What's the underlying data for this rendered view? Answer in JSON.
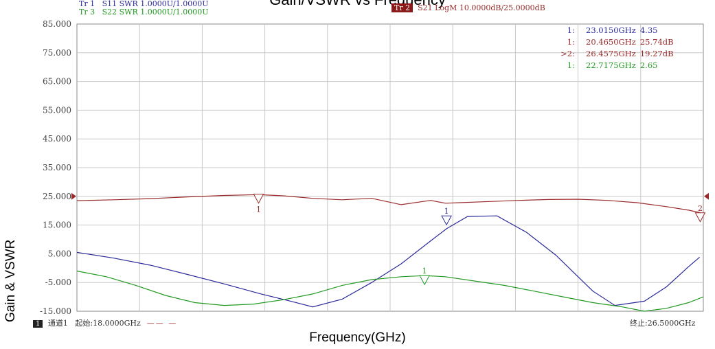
{
  "title": "Gain/VSWR vs Frequency",
  "traces_header": [
    {
      "id": "tr1",
      "label": "Tr 1",
      "text": "S11 SWR 1.0000U/1.0000U",
      "color": "#2a2a9a"
    },
    {
      "id": "tr3",
      "label": "Tr 3",
      "text": "S22 SWR 1.0000U/1.0000U",
      "color": "#229922"
    },
    {
      "id": "tr2",
      "label": "Tr 2",
      "text": "S21 LogM 10.0000dB/25.0000dB",
      "color": "#9a2a2a"
    }
  ],
  "marker_table": [
    {
      "idx": "1:",
      "freq": "23.0150GHz",
      "val": "4.35",
      "color": "#2a2a9a"
    },
    {
      "idx": "1:",
      "freq": "20.4650GHz",
      "val": "25.74dB",
      "color": "#9a2a2a"
    },
    {
      "idx": ">2:",
      "freq": "26.4575GHz",
      "val": "19.27dB",
      "color": "#9a2a2a"
    },
    {
      "idx": "1:",
      "freq": "22.7175GHz",
      "val": "2.65",
      "color": "#229922"
    }
  ],
  "footer": {
    "channel_badge": "1",
    "channel": "通道1",
    "start": "起始:18.0000GHz",
    "stop": "终止:26.5000GHz"
  },
  "chart_data": {
    "type": "line",
    "title": "Gain/VSWR vs Frequency",
    "xlabel": "Frequency(GHz)",
    "ylabel": "Gain & VSWR",
    "xlim": [
      18.0,
      26.5
    ],
    "ylim": [
      -15,
      85
    ],
    "y_ticks": [
      "85.000",
      "75.000",
      "65.000",
      "55.000",
      "45.000",
      "35.000",
      "25.000",
      "15.000",
      "5.000",
      "-5.000",
      "-15.000"
    ],
    "grid": true,
    "series": [
      {
        "name": "Tr 1 S11 SWR",
        "color": "#2a2a9a",
        "x": [
          18.0,
          18.5,
          19.0,
          19.5,
          20.0,
          20.5,
          20.9,
          21.2,
          21.6,
          22.0,
          22.4,
          22.8,
          23.02,
          23.3,
          23.7,
          24.1,
          24.5,
          24.8,
          25.0,
          25.3,
          25.7,
          26.0,
          26.3,
          26.45
        ],
        "y": [
          5.5,
          3.5,
          1.0,
          -2.2,
          -5.5,
          -9.0,
          -11.5,
          -13.5,
          -10.8,
          -5.0,
          1.5,
          9.5,
          13.8,
          18.0,
          18.2,
          12.5,
          4.5,
          -3.0,
          -8.0,
          -13.0,
          -11.5,
          -6.5,
          0.5,
          3.8
        ]
      },
      {
        "name": "Tr 2 S21 LogM",
        "color": "#9a2a2a",
        "x": [
          18.0,
          18.5,
          19.0,
          19.5,
          20.0,
          20.46,
          20.8,
          21.2,
          21.6,
          22.0,
          22.4,
          22.8,
          23.0,
          23.2,
          23.6,
          24.0,
          24.4,
          24.8,
          25.2,
          25.6,
          26.0,
          26.3,
          26.46
        ],
        "y": [
          23.5,
          23.8,
          24.2,
          24.8,
          25.3,
          25.6,
          25.2,
          24.3,
          23.8,
          23.4,
          23.0,
          22.7,
          22.6,
          22.8,
          23.2,
          23.6,
          23.9,
          24.0,
          23.6,
          22.8,
          21.4,
          20.2,
          19.3
        ]
      },
      {
        "name": "Tr 3 S22 SWR",
        "color": "#229922",
        "x": [
          18.0,
          18.4,
          18.8,
          19.2,
          19.6,
          20.0,
          20.4,
          20.8,
          21.2,
          21.6,
          22.0,
          22.4,
          22.72,
          23.0,
          23.4,
          23.8,
          24.2,
          24.6,
          25.0,
          25.4,
          25.7,
          26.0,
          26.3,
          26.5
        ],
        "y": [
          -1.0,
          -3.0,
          -6.0,
          -9.5,
          -12.0,
          -13.0,
          -12.5,
          -11.0,
          -9.0,
          -6.0,
          -4.0,
          -3.0,
          -2.6,
          -3.0,
          -4.5,
          -6.0,
          -8.0,
          -10.0,
          -12.0,
          -13.5,
          -15.0,
          -14.0,
          -12.0,
          -10.0
        ]
      }
    ],
    "markers": [
      {
        "label": "1",
        "x": 20.465,
        "y": 25.74,
        "color": "#9a2a2a",
        "below": true
      },
      {
        "label": "2",
        "x": 26.4575,
        "y": 19.27,
        "color": "#9a2a2a",
        "below": false
      },
      {
        "label": "1",
        "x": 23.015,
        "y": 18.2,
        "color": "#2a2a9a",
        "below": false
      },
      {
        "label": "1",
        "x": 22.7175,
        "y": -2.6,
        "color": "#229922",
        "below": false
      }
    ],
    "reference_level": 25
  }
}
